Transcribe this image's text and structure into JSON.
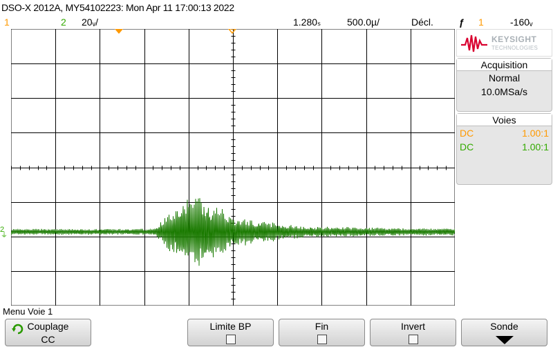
{
  "title": "DSO-X 2012A, MY54102223: Mon Apr 11 17:00:13 2022",
  "status": {
    "ch1_num": "1",
    "ch2_num": "2",
    "ch2_scale": "20ᵥ/",
    "time_ref": "1.280ₛ",
    "timebase": "500.0µ/",
    "trigger_label": "Décl.",
    "trigger_source": "1",
    "trigger_level": "-160ᵥ"
  },
  "markers": {
    "ch2_ground": "2",
    "ground_symbol": "⏚"
  },
  "brand": {
    "name": "KEYSIGHT",
    "sub": "TECHNOLOGIES"
  },
  "acquisition": {
    "title": "Acquisition",
    "mode": "Normal",
    "rate": "10.0MSa/s"
  },
  "channels": {
    "title": "Voies",
    "rows": [
      {
        "coupling": "DC",
        "probe": "1.00:1"
      },
      {
        "coupling": "DC",
        "probe": "1.00:1"
      }
    ]
  },
  "menu": {
    "title": "Menu Voie 1",
    "softkeys": [
      {
        "label": "Couplage",
        "value": "CC"
      },
      {
        "label": "Limite BP"
      },
      {
        "label": "Fin"
      },
      {
        "label": "Invert"
      },
      {
        "label": "Sonde"
      }
    ]
  },
  "colors": {
    "ch1": "#ff9900",
    "ch2": "#33aa00",
    "trace": "#1a7a00",
    "grid": "#000000"
  }
}
